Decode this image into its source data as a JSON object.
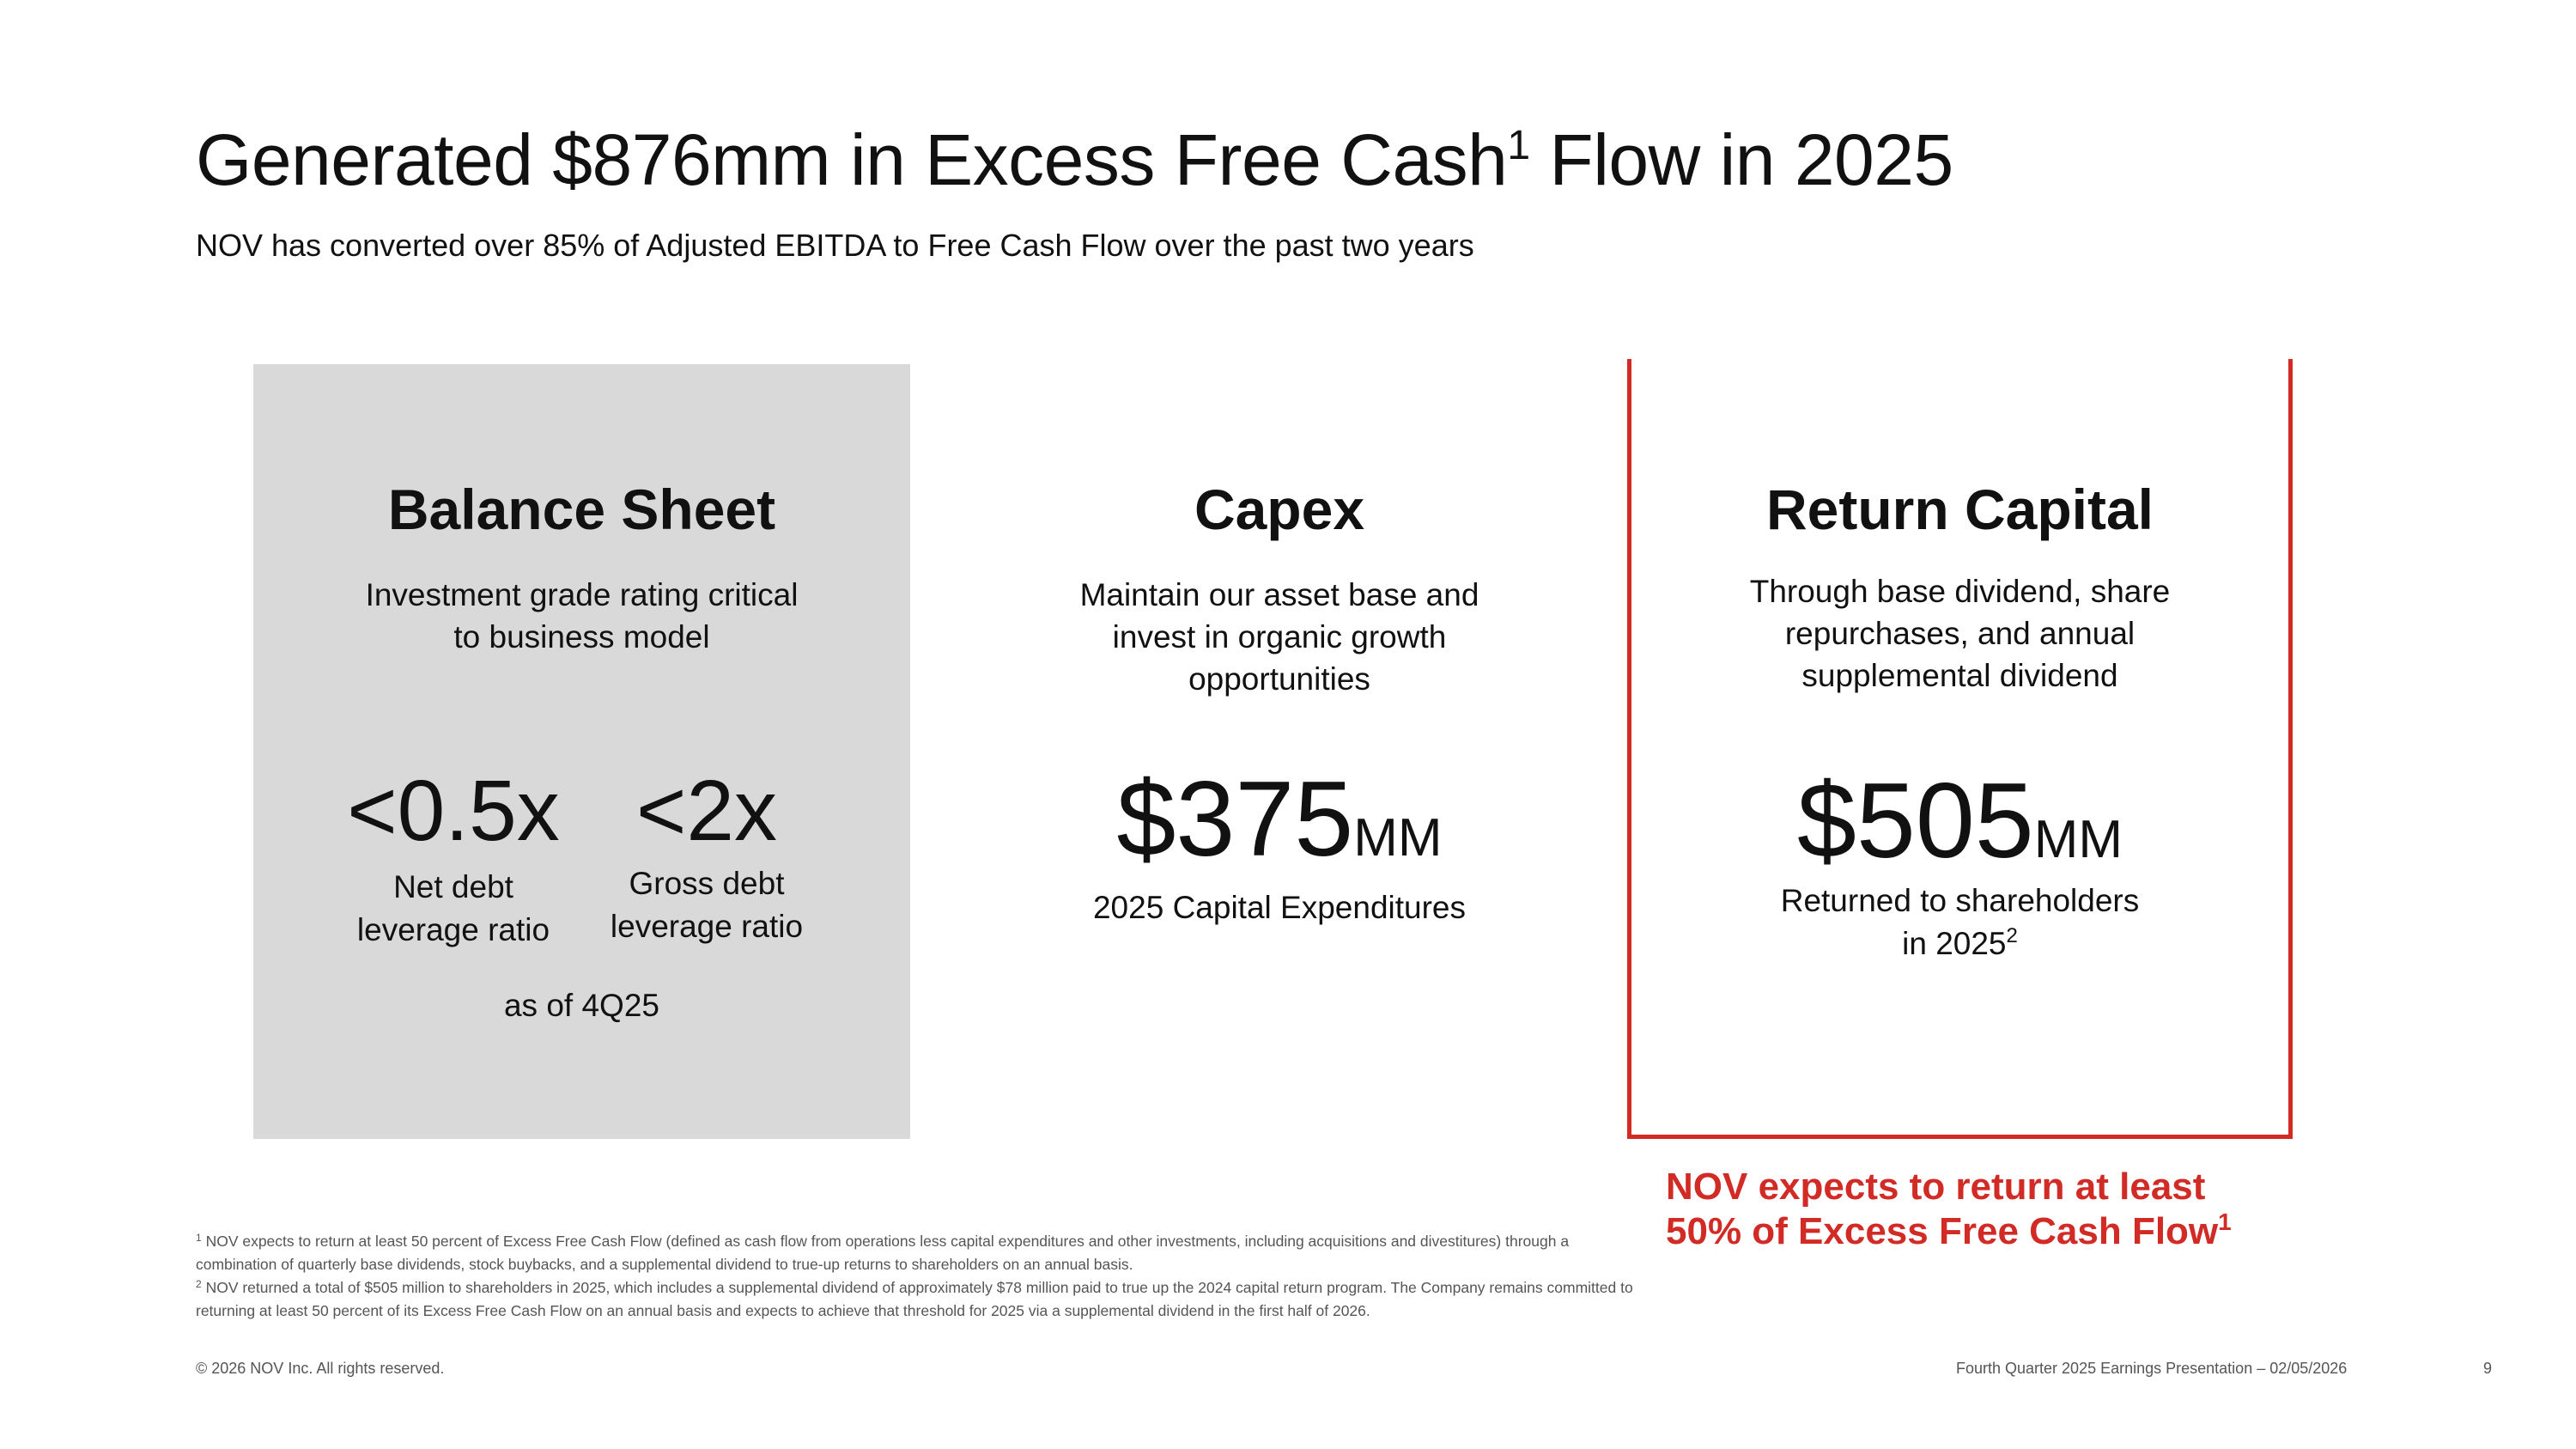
{
  "header": {
    "title_before": "Generated $876mm in Excess Free Cash",
    "title_sup": "1",
    "title_after": " Flow in 2025",
    "subtitle": "NOV has converted over 85% of Adjusted EBITDA to Free Cash Flow over the past two years"
  },
  "panels": {
    "balance_sheet": {
      "heading": "Balance Sheet",
      "desc_line1": "Investment grade rating critical",
      "desc_line2": "to business model",
      "metrics": [
        {
          "value": "<0.5x",
          "label_line1": "Net debt",
          "label_line2": "leverage ratio"
        },
        {
          "value": "<2x",
          "label_line1": "Gross debt",
          "label_line2": "leverage ratio"
        }
      ],
      "as_of": "as of 4Q25"
    },
    "capex": {
      "heading": "Capex",
      "desc_line1": "Maintain our asset base and",
      "desc_line2": "invest in organic growth",
      "desc_line3": "opportunities",
      "value": "$375",
      "unit": "MM",
      "label": "2025 Capital Expenditures"
    },
    "return_capital": {
      "heading": "Return Capital",
      "desc_line1": "Through base dividend, share",
      "desc_line2": "repurchases, and annual",
      "desc_line3": "supplemental dividend",
      "value": "$505",
      "unit": "MM",
      "label_line1": "Returned to shareholders",
      "label_line2": "in 2025",
      "label_sup": "2"
    }
  },
  "callout": {
    "line1": "NOV expects to return at least",
    "line2": "50% of Excess Free Cash Flow",
    "sup": "1"
  },
  "footnotes": [
    {
      "marker": "1",
      "text": "NOV expects to return at least 50 percent of Excess Free Cash Flow (defined as cash flow from operations less capital expenditures and other investments, including acquisitions and divestitures) through a combination of quarterly base dividends, stock buybacks, and a supplemental dividend to true-up returns to shareholders on an annual basis."
    },
    {
      "marker": "2",
      "text": "NOV returned a total of $505 million to shareholders in 2025, which includes a supplemental dividend of approximately $78 million paid to true up the 2024 capital return program. The Company remains committed to returning at least 50 percent of its Excess Free Cash Flow on an annual basis and expects to achieve that threshold for 2025 via a supplemental dividend in the first half of 2026."
    }
  ],
  "footer": {
    "copyright": "© 2026 NOV Inc. All rights reserved.",
    "presentation": "Fourth Quarter 2025 Earnings Presentation – 02/05/2026",
    "page": "9"
  },
  "colors": {
    "accent_red": "#d22b26",
    "panel_grey": "#d9d9d9"
  }
}
